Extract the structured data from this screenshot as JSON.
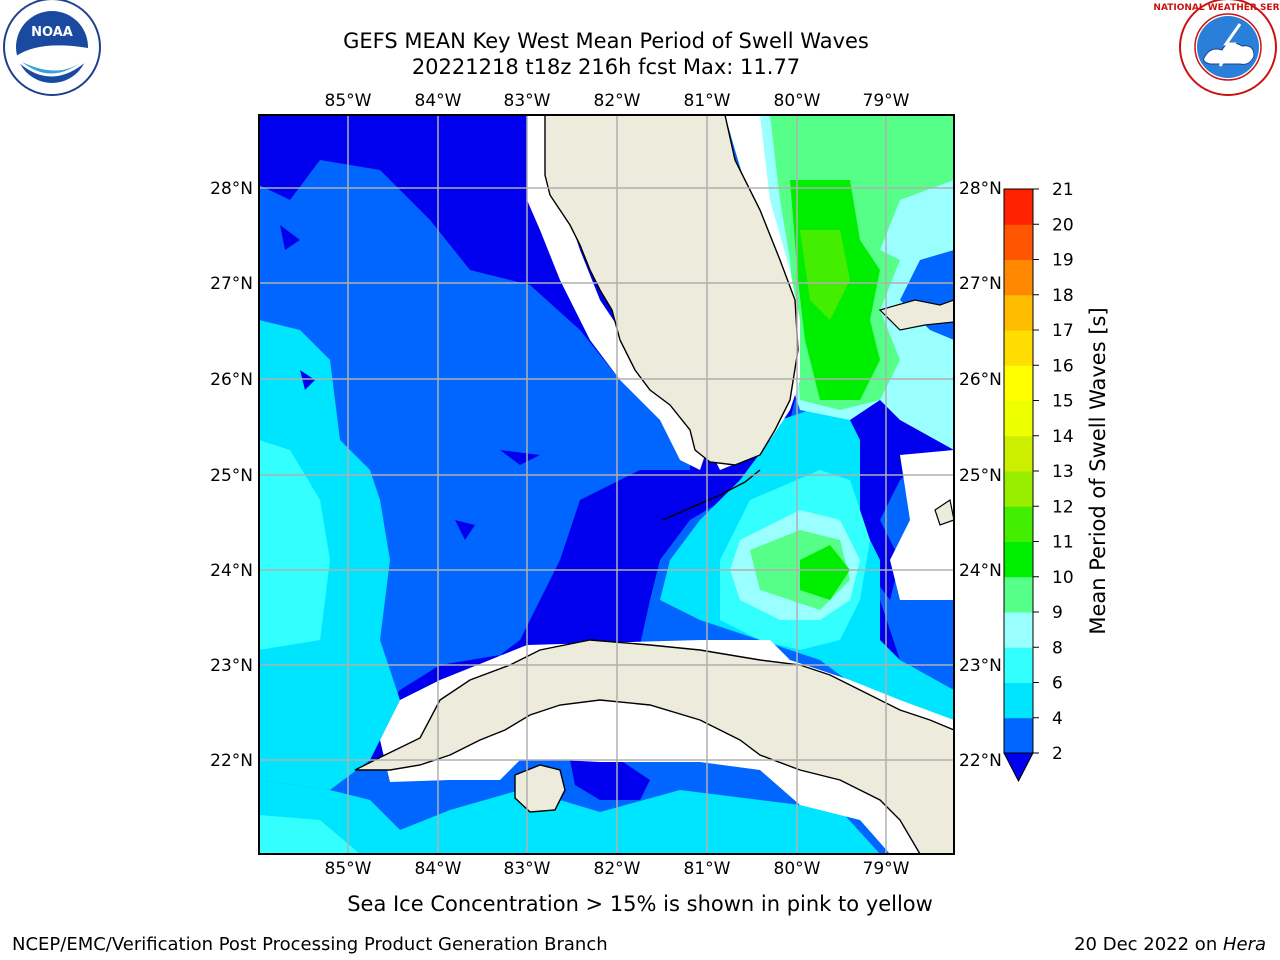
{
  "title": {
    "line1": "GEFS MEAN Key West Mean Period of Swell Waves",
    "line2": "20221218 t18z 216h fcst   Max: 11.77"
  },
  "logos": {
    "left": {
      "icon": "noaa-logo-icon",
      "text": "NOAA"
    },
    "right": {
      "icon": "nws-logo-icon",
      "text": "NATIONAL WEATHER SERVICE"
    }
  },
  "map": {
    "lon_labels": [
      "85°W",
      "84°W",
      "83°W",
      "82°W",
      "81°W",
      "80°W",
      "79°W"
    ],
    "lat_labels": [
      "28°N",
      "27°N",
      "26°N",
      "25°N",
      "24°N",
      "23°N",
      "22°N"
    ],
    "land_color": "#ecebdc",
    "grid_color": "#b0b0b0"
  },
  "colorbar": {
    "label": "Mean Period of Swell Waves [s]",
    "ticks": [
      "2",
      "4",
      "6",
      "8",
      "9",
      "10",
      "11",
      "12",
      "13",
      "14",
      "15",
      "16",
      "17",
      "18",
      "19",
      "20",
      "21"
    ],
    "colors": [
      "#0066ff",
      "#00e5ff",
      "#33ffff",
      "#99ffff",
      "#55ff88",
      "#00ee00",
      "#44ee00",
      "#99ee00",
      "#ccee00",
      "#eeff00",
      "#ffff00",
      "#ffdd00",
      "#ffbb00",
      "#ff8800",
      "#ff5500",
      "#ff2200"
    ],
    "extend_color": "#0000ee"
  },
  "footer": {
    "note": "Sea Ice Concentration > 15% is shown in pink to yellow",
    "credit": "NCEP/EMC/Verification Post Processing Product Generation Branch",
    "date": "20 Dec 2022 on ",
    "machine": "Hera"
  }
}
